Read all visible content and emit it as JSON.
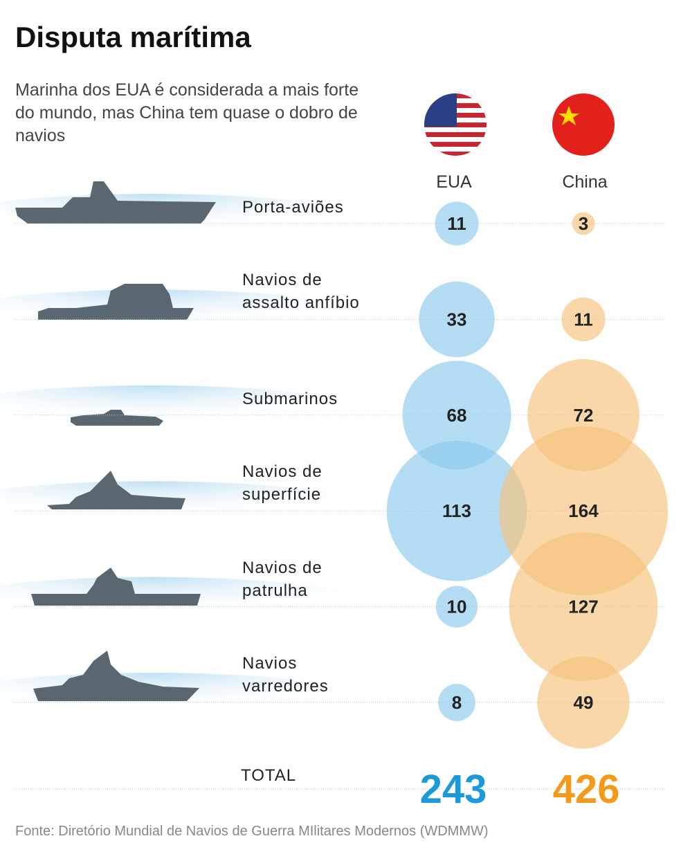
{
  "chart_data": {
    "type": "bubble",
    "title": "Disputa marítima",
    "subtitle": "Marinha dos EUA é considerada a mais forte do mundo, mas China tem quase o dobro de navios",
    "categories": [
      "Porta-aviões",
      "Navios de\nassalto anfíbio",
      "Submarinos",
      "Navios de\nsuperfície",
      "Navios de\npatrulha",
      "Navios\nvarredores"
    ],
    "series": [
      {
        "name": "EUA",
        "color": "#8ccbee",
        "values": [
          11,
          33,
          68,
          113,
          10,
          8
        ],
        "total": 243,
        "total_color": "#1c9ad8"
      },
      {
        "name": "China",
        "color": "#f6c27a",
        "values": [
          3,
          11,
          72,
          164,
          127,
          49
        ],
        "total": 426,
        "total_color": "#f39a1a"
      }
    ],
    "total_label": "TOTAL",
    "source": "Fonte: Diretório Mundial de Navios de Guerra MIlitares Modernos (WDMMW)"
  }
}
